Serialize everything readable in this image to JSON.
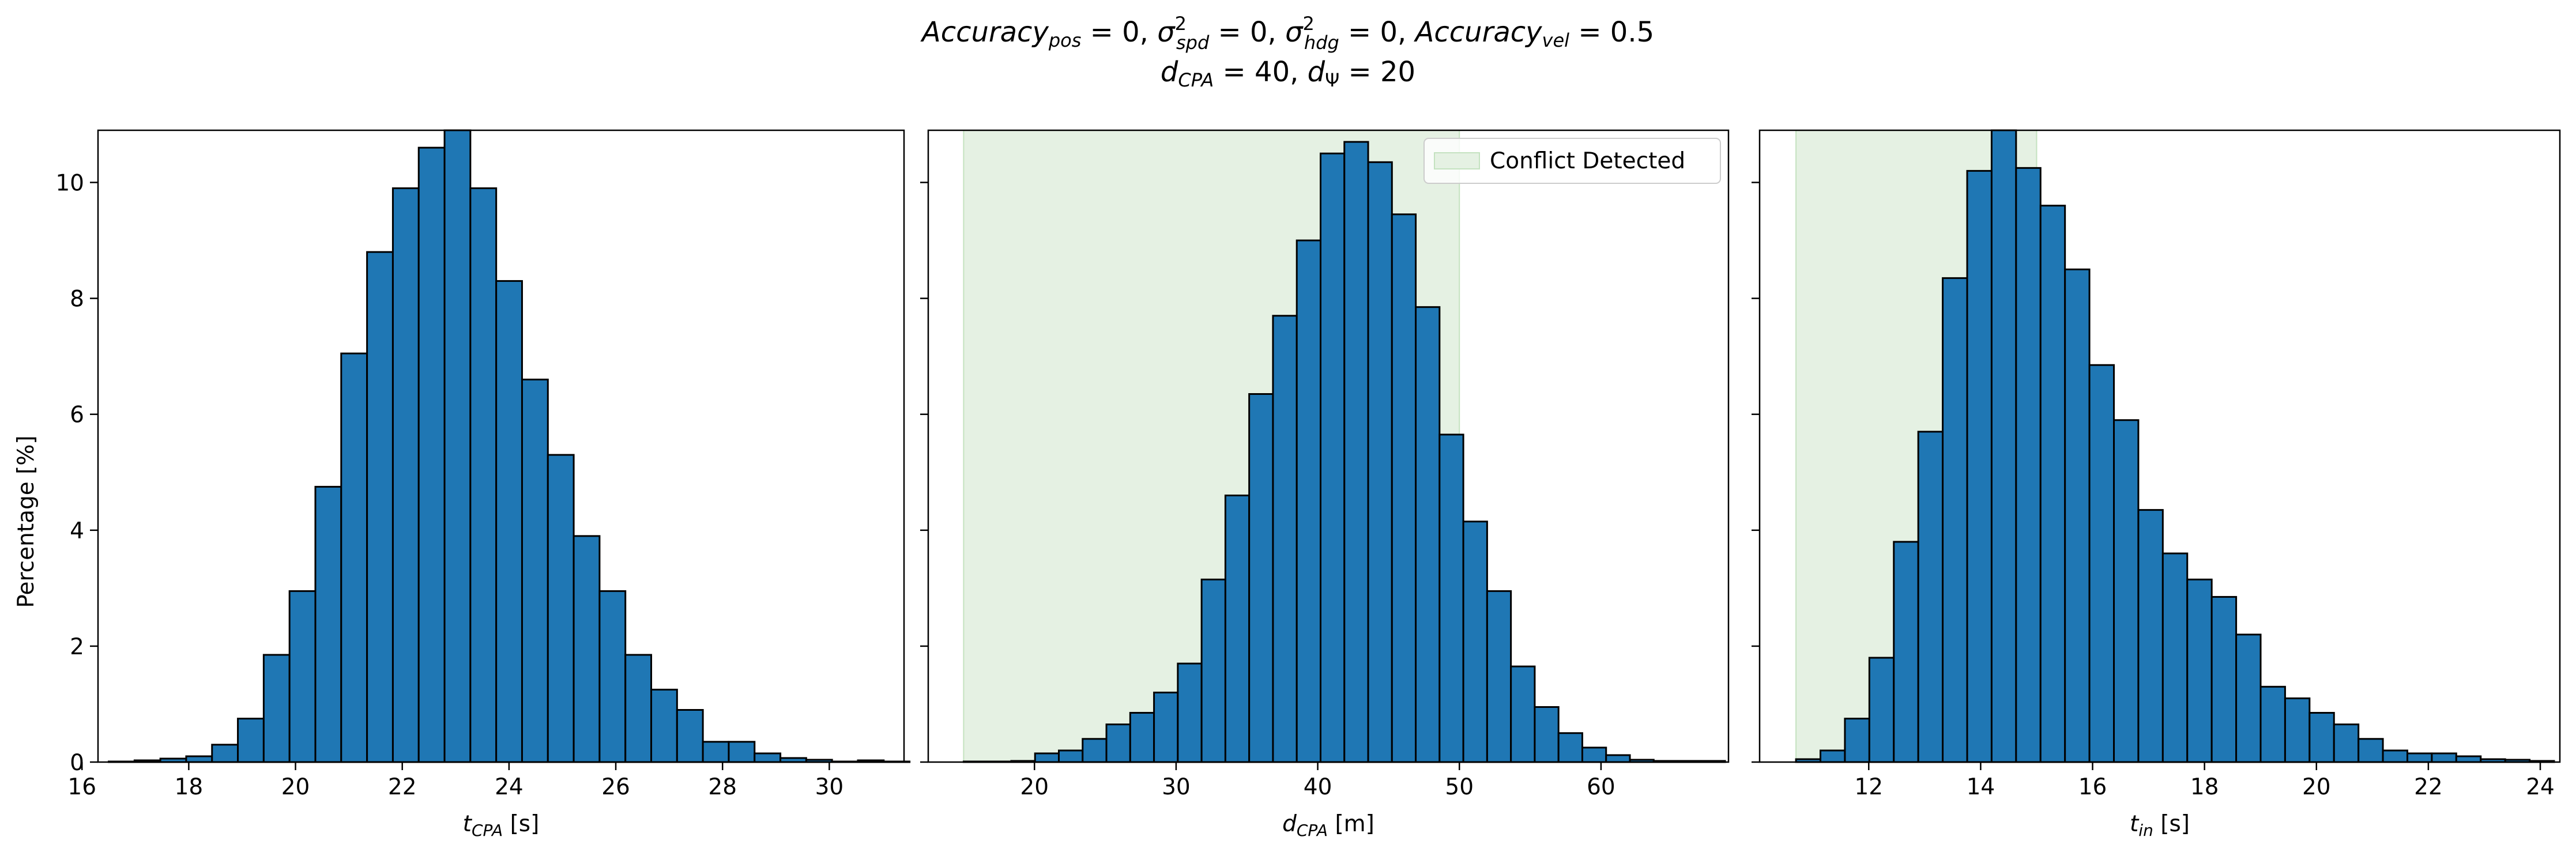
{
  "figure": {
    "title_line1": {
      "p1_base": "Accuracy",
      "p1_sub": "pos",
      "p1_rest": " = 0, ",
      "p2_base": "σ",
      "p2_sup": "2",
      "p2_sub": "spd",
      "p2_rest": " = 0, ",
      "p3_base": "σ",
      "p3_sup": "2",
      "p3_sub": "hdg",
      "p3_rest": " = 0, ",
      "p4_base": "Accuracy",
      "p4_sub": "vel",
      "p4_rest": " = 0.5"
    },
    "title_line2": {
      "p1_base": "d",
      "p1_sub": "CPA",
      "p1_rest": " = 40, ",
      "p2_base": "d",
      "p2_sub": "Ψ",
      "p2_rest": " = 20"
    }
  },
  "colors": {
    "bar_fill": "#1f77b4",
    "bar_edge": "#000000",
    "conflict_fill": "#e5f1e3",
    "conflict_edge": "#c4e2c0"
  },
  "chart_data": [
    {
      "type": "bar",
      "xlabel": {
        "base": "t",
        "sub": "CPA",
        "unit": " [s]"
      },
      "ylabel": "Percentage [%]",
      "xlim": [
        16.3,
        31.4
      ],
      "ylim": [
        0,
        10.9
      ],
      "xticks": [
        16,
        18,
        20,
        22,
        24,
        26,
        28,
        30
      ],
      "yticks": [
        0,
        2,
        4,
        6,
        8,
        10
      ],
      "bin_start": 16.5,
      "bin_width": 0.484,
      "values": [
        0.01,
        0.03,
        0.06,
        0.1,
        0.3,
        0.75,
        1.85,
        2.95,
        4.75,
        7.05,
        8.8,
        9.9,
        10.6,
        10.9,
        9.9,
        8.3,
        6.6,
        5.3,
        3.9,
        2.95,
        1.85,
        1.25,
        0.9,
        0.35,
        0.35,
        0.15,
        0.07,
        0.04,
        0.01,
        0.03,
        0.01
      ],
      "conflict_region": null,
      "legend": null
    },
    {
      "type": "bar",
      "xlabel": {
        "base": "d",
        "sub": "CPA",
        "unit": " [m]"
      },
      "ylabel": "",
      "xlim": [
        12.5,
        69.0
      ],
      "ylim": [
        0,
        10.9
      ],
      "xticks": [
        20,
        30,
        40,
        50,
        60
      ],
      "yticks": [
        0,
        2,
        4,
        6,
        8,
        10
      ],
      "bin_start": 15.0,
      "bin_width": 1.68,
      "values": [
        0.01,
        0.01,
        0.02,
        0.15,
        0.2,
        0.4,
        0.65,
        0.85,
        1.2,
        1.7,
        3.15,
        4.6,
        6.35,
        7.7,
        9.0,
        10.5,
        10.7,
        10.35,
        9.45,
        7.85,
        5.65,
        4.15,
        2.95,
        1.65,
        0.95,
        0.5,
        0.25,
        0.12,
        0.04,
        0.02,
        0.02,
        0.02
      ],
      "conflict_region": {
        "x0": 15.0,
        "x1": 50.0
      },
      "legend": {
        "label": "Conflict Detected",
        "position": "top-right"
      }
    },
    {
      "type": "bar",
      "xlabel": {
        "base": "t",
        "sub": "in",
        "unit": " [s]"
      },
      "ylabel": "",
      "xlim": [
        10.05,
        24.35
      ],
      "ylim": [
        0,
        10.9
      ],
      "xticks": [
        12,
        14,
        16,
        18,
        20,
        22,
        24
      ],
      "yticks": [
        0,
        2,
        4,
        6,
        8,
        10
      ],
      "bin_start": 10.7,
      "bin_width": 0.437,
      "values": [
        0.05,
        0.2,
        0.75,
        1.8,
        3.8,
        5.7,
        8.35,
        10.2,
        10.9,
        10.25,
        9.6,
        8.5,
        6.85,
        5.9,
        4.35,
        3.6,
        3.15,
        2.85,
        2.2,
        1.3,
        1.1,
        0.85,
        0.65,
        0.4,
        0.2,
        0.15,
        0.15,
        0.1,
        0.05,
        0.04,
        0.02
      ],
      "conflict_region": {
        "x0": 10.7,
        "x1": 15.0
      },
      "legend": null
    }
  ]
}
